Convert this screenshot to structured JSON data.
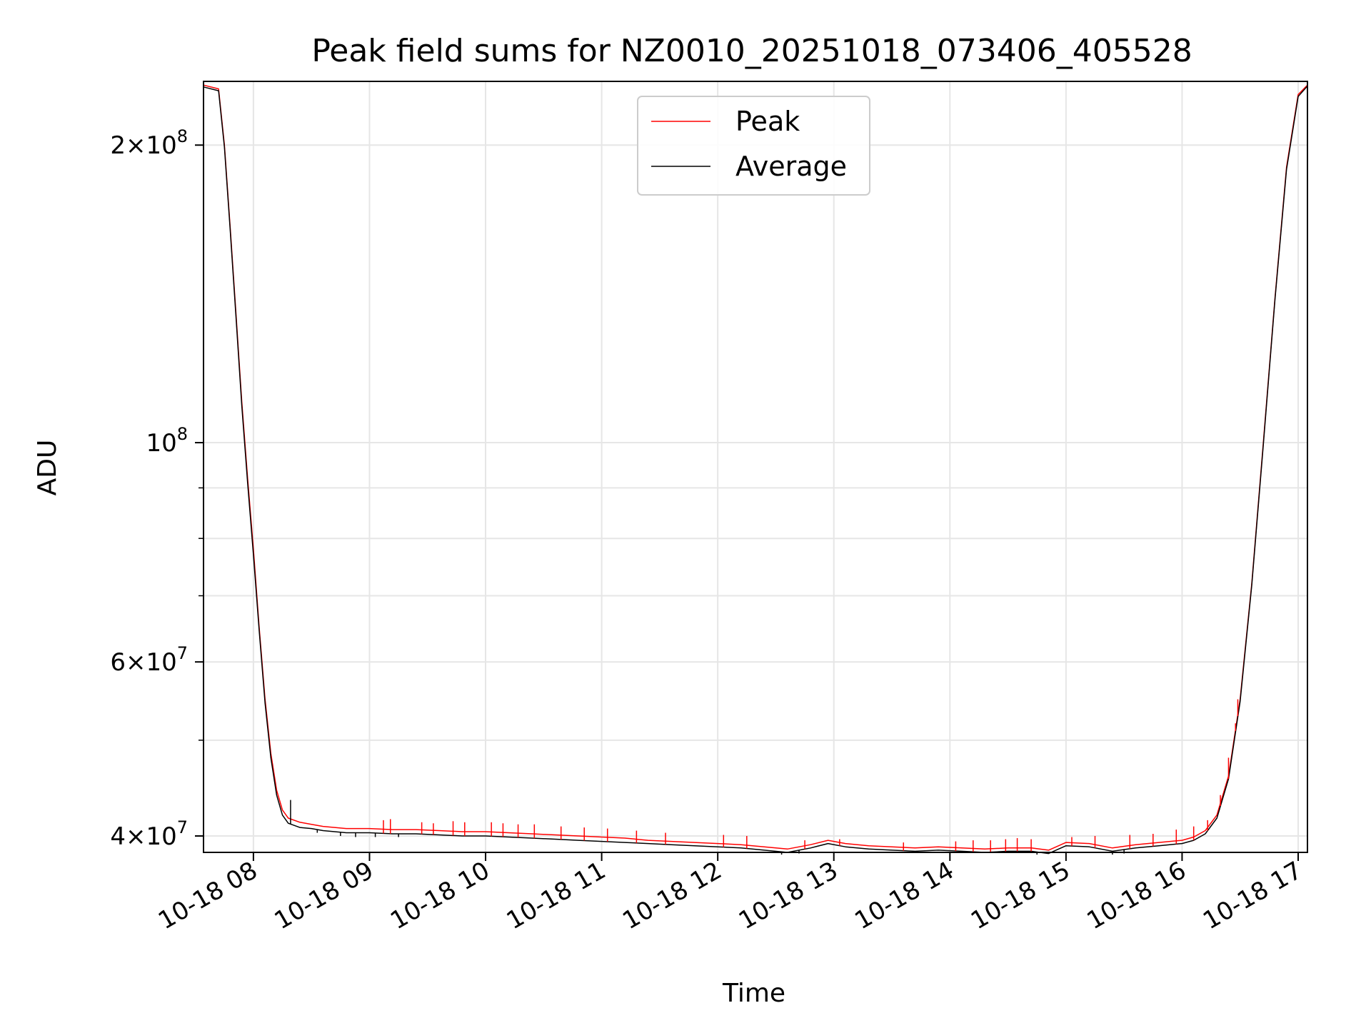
{
  "chart_data": {
    "type": "line",
    "title": "Peak field sums for NZ0010_20251018_073406_405528",
    "xlabel": "Time",
    "ylabel": "ADU",
    "yscale": "log",
    "ylim": [
      38500000,
      232000000
    ],
    "xlim_hours": [
      7.57,
      17.08
    ],
    "grid": true,
    "legend_loc": "upper center",
    "x_ticks": [
      {
        "hour": 8,
        "label": "10-18 08"
      },
      {
        "hour": 9,
        "label": "10-18 09"
      },
      {
        "hour": 10,
        "label": "10-18 10"
      },
      {
        "hour": 11,
        "label": "10-18 11"
      },
      {
        "hour": 12,
        "label": "10-18 12"
      },
      {
        "hour": 13,
        "label": "10-18 13"
      },
      {
        "hour": 14,
        "label": "10-18 14"
      },
      {
        "hour": 15,
        "label": "10-18 15"
      },
      {
        "hour": 16,
        "label": "10-18 16"
      },
      {
        "hour": 17,
        "label": "10-18 17"
      }
    ],
    "y_major_ticks": [
      {
        "value": 40000000,
        "mantissa": "4",
        "exp": "7"
      },
      {
        "value": 60000000,
        "mantissa": "6",
        "exp": "7"
      },
      {
        "value": 100000000,
        "mantissa": "",
        "exp": "8"
      },
      {
        "value": 200000000,
        "mantissa": "2",
        "exp": "8"
      }
    ],
    "y_minor_ticks": [
      50000000,
      70000000,
      80000000,
      90000000
    ],
    "series": [
      {
        "name": "Peak",
        "color": "#ff0000",
        "x_hours": [
          7.57,
          7.7,
          7.75,
          7.8,
          7.85,
          7.9,
          7.95,
          8.0,
          8.05,
          8.1,
          8.15,
          8.2,
          8.25,
          8.3,
          8.4,
          8.5,
          8.6,
          8.7,
          8.8,
          9.0,
          9.2,
          9.4,
          9.6,
          9.8,
          10.0,
          10.2,
          10.4,
          10.6,
          10.8,
          11.0,
          11.2,
          11.4,
          11.6,
          11.8,
          12.0,
          12.2,
          12.4,
          12.6,
          12.8,
          12.95,
          13.1,
          13.3,
          13.5,
          13.7,
          13.9,
          14.1,
          14.3,
          14.5,
          14.7,
          14.85,
          15.0,
          15.2,
          15.4,
          15.6,
          15.8,
          16.0,
          16.1,
          16.2,
          16.3,
          16.4,
          16.5,
          16.6,
          16.7,
          16.8,
          16.9,
          17.0,
          17.08
        ],
        "values": [
          230000000,
          228000000,
          200000000,
          165000000,
          135000000,
          110000000,
          92000000,
          78000000,
          65000000,
          55000000,
          48500000,
          44500000,
          42500000,
          41700000,
          41300000,
          41100000,
          40900000,
          40800000,
          40700000,
          40700000,
          40600000,
          40600000,
          40500000,
          40400000,
          40400000,
          40300000,
          40200000,
          40100000,
          40000000,
          39900000,
          39800000,
          39600000,
          39500000,
          39400000,
          39300000,
          39200000,
          39000000,
          38800000,
          39200000,
          39600000,
          39300000,
          39100000,
          39000000,
          38900000,
          39000000,
          38900000,
          38800000,
          38900000,
          38900000,
          38700000,
          39400000,
          39300000,
          38900000,
          39200000,
          39400000,
          39600000,
          39900000,
          40500000,
          42000000,
          46000000,
          55000000,
          72000000,
          100000000,
          140000000,
          190000000,
          225000000,
          230000000
        ]
      },
      {
        "name": "Average",
        "color": "#000000",
        "x_hours": [
          7.57,
          7.7,
          7.75,
          7.8,
          7.85,
          7.9,
          7.95,
          8.0,
          8.05,
          8.1,
          8.15,
          8.2,
          8.25,
          8.3,
          8.4,
          8.5,
          8.6,
          8.7,
          8.8,
          9.0,
          9.2,
          9.4,
          9.6,
          9.8,
          10.0,
          10.2,
          10.4,
          10.6,
          10.8,
          11.0,
          11.2,
          11.4,
          11.6,
          11.8,
          12.0,
          12.2,
          12.4,
          12.6,
          12.8,
          12.95,
          13.1,
          13.3,
          13.5,
          13.7,
          13.9,
          14.1,
          14.3,
          14.5,
          14.7,
          14.85,
          15.0,
          15.2,
          15.4,
          15.6,
          15.8,
          16.0,
          16.1,
          16.2,
          16.3,
          16.4,
          16.5,
          16.6,
          16.7,
          16.8,
          16.9,
          17.0,
          17.08
        ],
        "values": [
          229000000,
          227000000,
          199000000,
          164000000,
          134000000,
          109000000,
          91000000,
          77000000,
          64500000,
          54500000,
          48000000,
          44000000,
          42000000,
          41200000,
          40800000,
          40700000,
          40500000,
          40400000,
          40300000,
          40300000,
          40200000,
          40200000,
          40100000,
          40000000,
          40000000,
          39900000,
          39800000,
          39700000,
          39600000,
          39500000,
          39400000,
          39300000,
          39200000,
          39100000,
          39000000,
          38900000,
          38700000,
          38500000,
          38900000,
          39300000,
          39000000,
          38800000,
          38700000,
          38600000,
          38700000,
          38600000,
          38500000,
          38600000,
          38600000,
          38400000,
          39100000,
          39000000,
          38600000,
          38900000,
          39100000,
          39300000,
          39600000,
          40200000,
          41700000,
          45700000,
          54700000,
          71700000,
          99500000,
          139500000,
          189000000,
          224000000,
          229500000
        ]
      }
    ],
    "peak_spikes": [
      {
        "x_hour": 9.12,
        "value": 41500000
      },
      {
        "x_hour": 9.18,
        "value": 41600000
      },
      {
        "x_hour": 9.45,
        "value": 41300000
      },
      {
        "x_hour": 9.55,
        "value": 41200000
      },
      {
        "x_hour": 9.72,
        "value": 41400000
      },
      {
        "x_hour": 9.82,
        "value": 41300000
      },
      {
        "x_hour": 10.05,
        "value": 41300000
      },
      {
        "x_hour": 10.15,
        "value": 41200000
      },
      {
        "x_hour": 10.28,
        "value": 41100000
      },
      {
        "x_hour": 10.42,
        "value": 41100000
      },
      {
        "x_hour": 10.65,
        "value": 40900000
      },
      {
        "x_hour": 10.85,
        "value": 40800000
      },
      {
        "x_hour": 11.05,
        "value": 40700000
      },
      {
        "x_hour": 11.3,
        "value": 40500000
      },
      {
        "x_hour": 11.55,
        "value": 40300000
      },
      {
        "x_hour": 12.05,
        "value": 40100000
      },
      {
        "x_hour": 12.25,
        "value": 40000000
      },
      {
        "x_hour": 12.75,
        "value": 39600000
      },
      {
        "x_hour": 13.05,
        "value": 39700000
      },
      {
        "x_hour": 13.6,
        "value": 39400000
      },
      {
        "x_hour": 14.05,
        "value": 39500000
      },
      {
        "x_hour": 14.2,
        "value": 39600000
      },
      {
        "x_hour": 14.35,
        "value": 39600000
      },
      {
        "x_hour": 14.48,
        "value": 39700000
      },
      {
        "x_hour": 14.58,
        "value": 39800000
      },
      {
        "x_hour": 14.7,
        "value": 39700000
      },
      {
        "x_hour": 15.05,
        "value": 39900000
      },
      {
        "x_hour": 15.25,
        "value": 40000000
      },
      {
        "x_hour": 15.55,
        "value": 40100000
      },
      {
        "x_hour": 15.75,
        "value": 40200000
      },
      {
        "x_hour": 15.95,
        "value": 40600000
      },
      {
        "x_hour": 16.1,
        "value": 40900000
      },
      {
        "x_hour": 16.22,
        "value": 41500000
      },
      {
        "x_hour": 16.33,
        "value": 44000000
      },
      {
        "x_hour": 16.4,
        "value": 48000000
      },
      {
        "x_hour": 16.46,
        "value": 52000000
      },
      {
        "x_hour": 16.48,
        "value": 55000000
      }
    ],
    "black_dips": [
      {
        "x_hour": 8.32,
        "value": 43500000
      },
      {
        "x_hour": 8.55,
        "value": 40300000
      },
      {
        "x_hour": 8.75,
        "value": 40000000
      },
      {
        "x_hour": 8.88,
        "value": 39900000
      },
      {
        "x_hour": 9.05,
        "value": 39900000
      },
      {
        "x_hour": 9.25,
        "value": 39900000
      },
      {
        "x_hour": 12.55,
        "value": 38300000
      },
      {
        "x_hour": 12.7,
        "value": 38400000
      },
      {
        "x_hour": 14.75,
        "value": 38300000
      },
      {
        "x_hour": 15.4,
        "value": 38300000
      },
      {
        "x_hour": 15.5,
        "value": 38400000
      }
    ]
  }
}
